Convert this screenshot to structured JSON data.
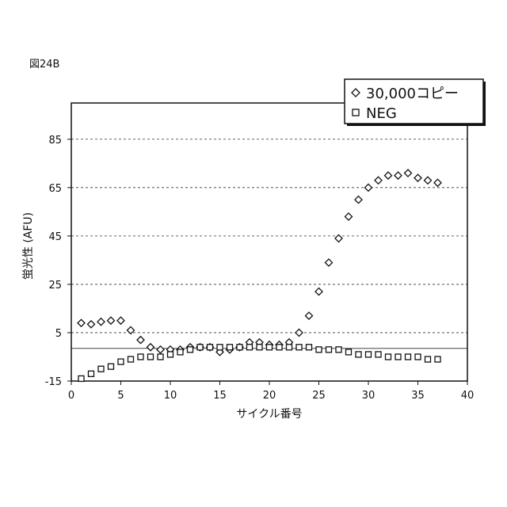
{
  "figure_label": "図24B",
  "chart_data": {
    "type": "scatter",
    "xlabel": "サイクル番号",
    "ylabel": "蛍光性 (AFU)",
    "xlim": [
      0,
      40
    ],
    "ylim": [
      -15,
      100
    ],
    "x_ticks": [
      0,
      5,
      10,
      15,
      20,
      25,
      30,
      35,
      40
    ],
    "y_ticks": [
      -15,
      5,
      25,
      45,
      65,
      85
    ],
    "grid": "horizontal dashed",
    "baseline": -1.5,
    "legend_placement": "top-right",
    "series": [
      {
        "name": "30,000コピー",
        "marker": "diamond",
        "x": [
          1,
          2,
          3,
          4,
          5,
          6,
          7,
          8,
          9,
          10,
          11,
          12,
          13,
          14,
          15,
          16,
          17,
          18,
          19,
          20,
          21,
          22,
          23,
          24,
          25,
          26,
          27,
          28,
          29,
          30,
          31,
          32,
          33,
          34,
          35,
          36,
          37
        ],
        "y": [
          9,
          8.5,
          9.5,
          10,
          10,
          6,
          2,
          -1,
          -2,
          -2,
          -2,
          -1,
          -1,
          -1,
          -3,
          -2,
          -1,
          1,
          1,
          0,
          0,
          1,
          5,
          12,
          22,
          34,
          44,
          53,
          60,
          65,
          68,
          70,
          70,
          71,
          69,
          68,
          67
        ]
      },
      {
        "name": "NEG",
        "marker": "square",
        "x": [
          1,
          2,
          3,
          4,
          5,
          6,
          7,
          8,
          9,
          10,
          11,
          12,
          13,
          14,
          15,
          16,
          17,
          18,
          19,
          20,
          21,
          22,
          23,
          24,
          25,
          26,
          27,
          28,
          29,
          30,
          31,
          32,
          33,
          34,
          35,
          36,
          37
        ],
        "y": [
          -14,
          -12,
          -10,
          -9,
          -7,
          -6,
          -5,
          -5,
          -5,
          -4,
          -3,
          -2,
          -1,
          -1,
          -1,
          -1,
          -1,
          -1,
          -1,
          -1,
          -1,
          -1,
          -1,
          -1,
          -2,
          -2,
          -2,
          -3,
          -4,
          -4,
          -4,
          -5,
          -5,
          -5,
          -5,
          -6,
          -6
        ]
      }
    ]
  }
}
